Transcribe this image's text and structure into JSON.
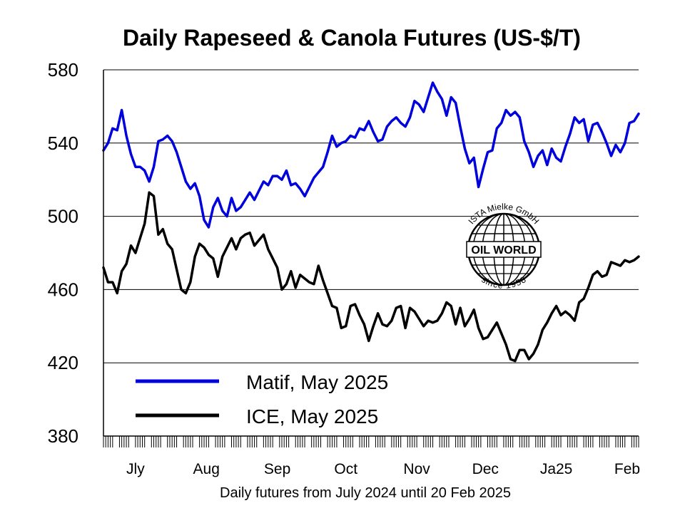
{
  "chart_data": {
    "type": "line",
    "title": "Daily Rapeseed & Canola Futures (US-$/T)",
    "xlabel": "Daily futures from July 2024 until 20 Feb 2025",
    "ylabel": "",
    "ylim": [
      380,
      580
    ],
    "yticks": [
      380,
      420,
      460,
      500,
      540,
      580
    ],
    "grid": true,
    "legend_position": "bottom-left",
    "x_tick_labels": [
      "Jly",
      "Aug",
      "Sep",
      "Oct",
      "Nov",
      "Dec",
      "Ja25",
      "Feb"
    ],
    "x_tick_positions": [
      "2024-07-15",
      "2024-08-15",
      "2024-09-15",
      "2024-10-15",
      "2024-11-15",
      "2024-12-15",
      "2025-01-15",
      "2025-02-15"
    ],
    "x_range": [
      "2024-07-01",
      "2025-02-20"
    ],
    "series": [
      {
        "name": "Matif, May 2025",
        "color": "#0000dd",
        "points": [
          [
            "2024-07-01",
            536
          ],
          [
            "2024-07-03",
            540
          ],
          [
            "2024-07-05",
            548
          ],
          [
            "2024-07-07",
            547
          ],
          [
            "2024-07-09",
            558
          ],
          [
            "2024-07-11",
            544
          ],
          [
            "2024-07-13",
            534
          ],
          [
            "2024-07-15",
            527
          ],
          [
            "2024-07-17",
            527
          ],
          [
            "2024-07-19",
            525
          ],
          [
            "2024-07-21",
            519
          ],
          [
            "2024-07-23",
            527
          ],
          [
            "2024-07-25",
            541
          ],
          [
            "2024-07-27",
            542
          ],
          [
            "2024-07-29",
            544
          ],
          [
            "2024-07-31",
            541
          ],
          [
            "2024-08-02",
            535
          ],
          [
            "2024-08-04",
            527
          ],
          [
            "2024-08-06",
            519
          ],
          [
            "2024-08-08",
            515
          ],
          [
            "2024-08-10",
            518
          ],
          [
            "2024-08-12",
            511
          ],
          [
            "2024-08-14",
            498
          ],
          [
            "2024-08-16",
            494
          ],
          [
            "2024-08-18",
            505
          ],
          [
            "2024-08-20",
            510
          ],
          [
            "2024-08-22",
            503
          ],
          [
            "2024-08-24",
            500
          ],
          [
            "2024-08-26",
            510
          ],
          [
            "2024-08-28",
            503
          ],
          [
            "2024-08-30",
            505
          ],
          [
            "2024-09-01",
            509
          ],
          [
            "2024-09-03",
            513
          ],
          [
            "2024-09-05",
            509
          ],
          [
            "2024-09-07",
            514
          ],
          [
            "2024-09-09",
            519
          ],
          [
            "2024-09-11",
            517
          ],
          [
            "2024-09-13",
            522
          ],
          [
            "2024-09-15",
            522
          ],
          [
            "2024-09-17",
            520
          ],
          [
            "2024-09-19",
            525
          ],
          [
            "2024-09-21",
            517
          ],
          [
            "2024-09-23",
            518
          ],
          [
            "2024-09-25",
            515
          ],
          [
            "2024-09-27",
            511
          ],
          [
            "2024-09-29",
            516
          ],
          [
            "2024-10-01",
            521
          ],
          [
            "2024-10-03",
            524
          ],
          [
            "2024-10-05",
            527
          ],
          [
            "2024-10-07",
            535
          ],
          [
            "2024-10-09",
            544
          ],
          [
            "2024-10-11",
            538
          ],
          [
            "2024-10-13",
            540
          ],
          [
            "2024-10-15",
            541
          ],
          [
            "2024-10-17",
            544
          ],
          [
            "2024-10-19",
            543
          ],
          [
            "2024-10-21",
            548
          ],
          [
            "2024-10-23",
            547
          ],
          [
            "2024-10-25",
            552
          ],
          [
            "2024-10-27",
            546
          ],
          [
            "2024-10-29",
            541
          ],
          [
            "2024-10-31",
            542
          ],
          [
            "2024-11-02",
            549
          ],
          [
            "2024-11-04",
            552
          ],
          [
            "2024-11-06",
            554
          ],
          [
            "2024-11-08",
            551
          ],
          [
            "2024-11-10",
            549
          ],
          [
            "2024-11-12",
            554
          ],
          [
            "2024-11-14",
            563
          ],
          [
            "2024-11-16",
            561
          ],
          [
            "2024-11-18",
            557
          ],
          [
            "2024-11-20",
            565
          ],
          [
            "2024-11-22",
            573
          ],
          [
            "2024-11-24",
            568
          ],
          [
            "2024-11-26",
            564
          ],
          [
            "2024-11-28",
            555
          ],
          [
            "2024-11-30",
            565
          ],
          [
            "2024-12-02",
            562
          ],
          [
            "2024-12-04",
            549
          ],
          [
            "2024-12-06",
            537
          ],
          [
            "2024-12-08",
            529
          ],
          [
            "2024-12-10",
            532
          ],
          [
            "2024-12-12",
            516
          ],
          [
            "2024-12-14",
            526
          ],
          [
            "2024-12-16",
            535
          ],
          [
            "2024-12-18",
            536
          ],
          [
            "2024-12-20",
            548
          ],
          [
            "2024-12-22",
            551
          ],
          [
            "2024-12-24",
            558
          ],
          [
            "2024-12-26",
            555
          ],
          [
            "2024-12-28",
            557
          ],
          [
            "2024-12-30",
            554
          ],
          [
            "2025-01-01",
            541
          ],
          [
            "2025-01-03",
            535
          ],
          [
            "2025-01-05",
            527
          ],
          [
            "2025-01-07",
            533
          ],
          [
            "2025-01-09",
            536
          ],
          [
            "2025-01-11",
            528
          ],
          [
            "2025-01-13",
            537
          ],
          [
            "2025-01-15",
            532
          ],
          [
            "2025-01-17",
            530
          ],
          [
            "2025-01-19",
            538
          ],
          [
            "2025-01-21",
            545
          ],
          [
            "2025-01-23",
            554
          ],
          [
            "2025-01-25",
            551
          ],
          [
            "2025-01-27",
            553
          ],
          [
            "2025-01-29",
            541
          ],
          [
            "2025-01-31",
            550
          ],
          [
            "2025-02-02",
            551
          ],
          [
            "2025-02-04",
            546
          ],
          [
            "2025-02-06",
            540
          ],
          [
            "2025-02-08",
            533
          ],
          [
            "2025-02-10",
            539
          ],
          [
            "2025-02-12",
            535
          ],
          [
            "2025-02-14",
            540
          ],
          [
            "2025-02-16",
            551
          ],
          [
            "2025-02-18",
            552
          ],
          [
            "2025-02-20",
            556
          ]
        ]
      },
      {
        "name": "ICE, May 2025",
        "color": "#000000",
        "points": [
          [
            "2024-07-01",
            472
          ],
          [
            "2024-07-03",
            464
          ],
          [
            "2024-07-05",
            464
          ],
          [
            "2024-07-07",
            458
          ],
          [
            "2024-07-09",
            470
          ],
          [
            "2024-07-11",
            474
          ],
          [
            "2024-07-13",
            484
          ],
          [
            "2024-07-15",
            480
          ],
          [
            "2024-07-17",
            488
          ],
          [
            "2024-07-19",
            496
          ],
          [
            "2024-07-21",
            513
          ],
          [
            "2024-07-23",
            511
          ],
          [
            "2024-07-25",
            490
          ],
          [
            "2024-07-27",
            493
          ],
          [
            "2024-07-29",
            485
          ],
          [
            "2024-07-31",
            482
          ],
          [
            "2024-08-02",
            471
          ],
          [
            "2024-08-04",
            460
          ],
          [
            "2024-08-06",
            458
          ],
          [
            "2024-08-08",
            464
          ],
          [
            "2024-08-10",
            478
          ],
          [
            "2024-08-12",
            485
          ],
          [
            "2024-08-14",
            483
          ],
          [
            "2024-08-16",
            479
          ],
          [
            "2024-08-18",
            477
          ],
          [
            "2024-08-20",
            467
          ],
          [
            "2024-08-22",
            478
          ],
          [
            "2024-08-24",
            483
          ],
          [
            "2024-08-26",
            488
          ],
          [
            "2024-08-28",
            482
          ],
          [
            "2024-08-30",
            488
          ],
          [
            "2024-09-01",
            490
          ],
          [
            "2024-09-03",
            491
          ],
          [
            "2024-09-05",
            484
          ],
          [
            "2024-09-07",
            487
          ],
          [
            "2024-09-09",
            490
          ],
          [
            "2024-09-11",
            482
          ],
          [
            "2024-09-13",
            477
          ],
          [
            "2024-09-15",
            472
          ],
          [
            "2024-09-17",
            460
          ],
          [
            "2024-09-19",
            463
          ],
          [
            "2024-09-21",
            470
          ],
          [
            "2024-09-23",
            461
          ],
          [
            "2024-09-25",
            468
          ],
          [
            "2024-09-27",
            466
          ],
          [
            "2024-09-29",
            464
          ],
          [
            "2024-10-01",
            463
          ],
          [
            "2024-10-03",
            473
          ],
          [
            "2024-10-05",
            465
          ],
          [
            "2024-10-07",
            458
          ],
          [
            "2024-10-09",
            451
          ],
          [
            "2024-10-11",
            450
          ],
          [
            "2024-10-13",
            439
          ],
          [
            "2024-10-15",
            440
          ],
          [
            "2024-10-17",
            451
          ],
          [
            "2024-10-19",
            452
          ],
          [
            "2024-10-21",
            446
          ],
          [
            "2024-10-23",
            441
          ],
          [
            "2024-10-25",
            432
          ],
          [
            "2024-10-27",
            440
          ],
          [
            "2024-10-29",
            447
          ],
          [
            "2024-10-31",
            441
          ],
          [
            "2024-11-02",
            440
          ],
          [
            "2024-11-04",
            443
          ],
          [
            "2024-11-06",
            450
          ],
          [
            "2024-11-08",
            451
          ],
          [
            "2024-11-10",
            439
          ],
          [
            "2024-11-12",
            450
          ],
          [
            "2024-11-14",
            448
          ],
          [
            "2024-11-16",
            444
          ],
          [
            "2024-11-18",
            440
          ],
          [
            "2024-11-20",
            443
          ],
          [
            "2024-11-22",
            442
          ],
          [
            "2024-11-24",
            443
          ],
          [
            "2024-11-26",
            447
          ],
          [
            "2024-11-28",
            453
          ],
          [
            "2024-11-30",
            451
          ],
          [
            "2024-12-02",
            441
          ],
          [
            "2024-12-04",
            450
          ],
          [
            "2024-12-06",
            440
          ],
          [
            "2024-12-08",
            444
          ],
          [
            "2024-12-10",
            449
          ],
          [
            "2024-12-12",
            439
          ],
          [
            "2024-12-14",
            433
          ],
          [
            "2024-12-16",
            434
          ],
          [
            "2024-12-18",
            438
          ],
          [
            "2024-12-20",
            442
          ],
          [
            "2024-12-22",
            436
          ],
          [
            "2024-12-24",
            430
          ],
          [
            "2024-12-26",
            422
          ],
          [
            "2024-12-28",
            421
          ],
          [
            "2024-12-30",
            427
          ],
          [
            "2025-01-01",
            427
          ],
          [
            "2025-01-03",
            422
          ],
          [
            "2025-01-05",
            425
          ],
          [
            "2025-01-07",
            430
          ],
          [
            "2025-01-09",
            438
          ],
          [
            "2025-01-11",
            442
          ],
          [
            "2025-01-13",
            447
          ],
          [
            "2025-01-15",
            451
          ],
          [
            "2025-01-17",
            446
          ],
          [
            "2025-01-19",
            448
          ],
          [
            "2025-01-21",
            446
          ],
          [
            "2025-01-23",
            443
          ],
          [
            "2025-01-25",
            453
          ],
          [
            "2025-01-27",
            455
          ],
          [
            "2025-01-29",
            461
          ],
          [
            "2025-01-31",
            468
          ],
          [
            "2025-02-02",
            470
          ],
          [
            "2025-02-04",
            467
          ],
          [
            "2025-02-06",
            468
          ],
          [
            "2025-02-08",
            475
          ],
          [
            "2025-02-10",
            474
          ],
          [
            "2025-02-12",
            473
          ],
          [
            "2025-02-14",
            476
          ],
          [
            "2025-02-16",
            475
          ],
          [
            "2025-02-18",
            476
          ],
          [
            "2025-02-20",
            478
          ]
        ]
      }
    ]
  },
  "watermark": {
    "top_text": "ISTA Mielke GmbH",
    "center_text": "OIL WORLD",
    "bottom_text": "since 1958",
    "icon": "globe-icon"
  }
}
